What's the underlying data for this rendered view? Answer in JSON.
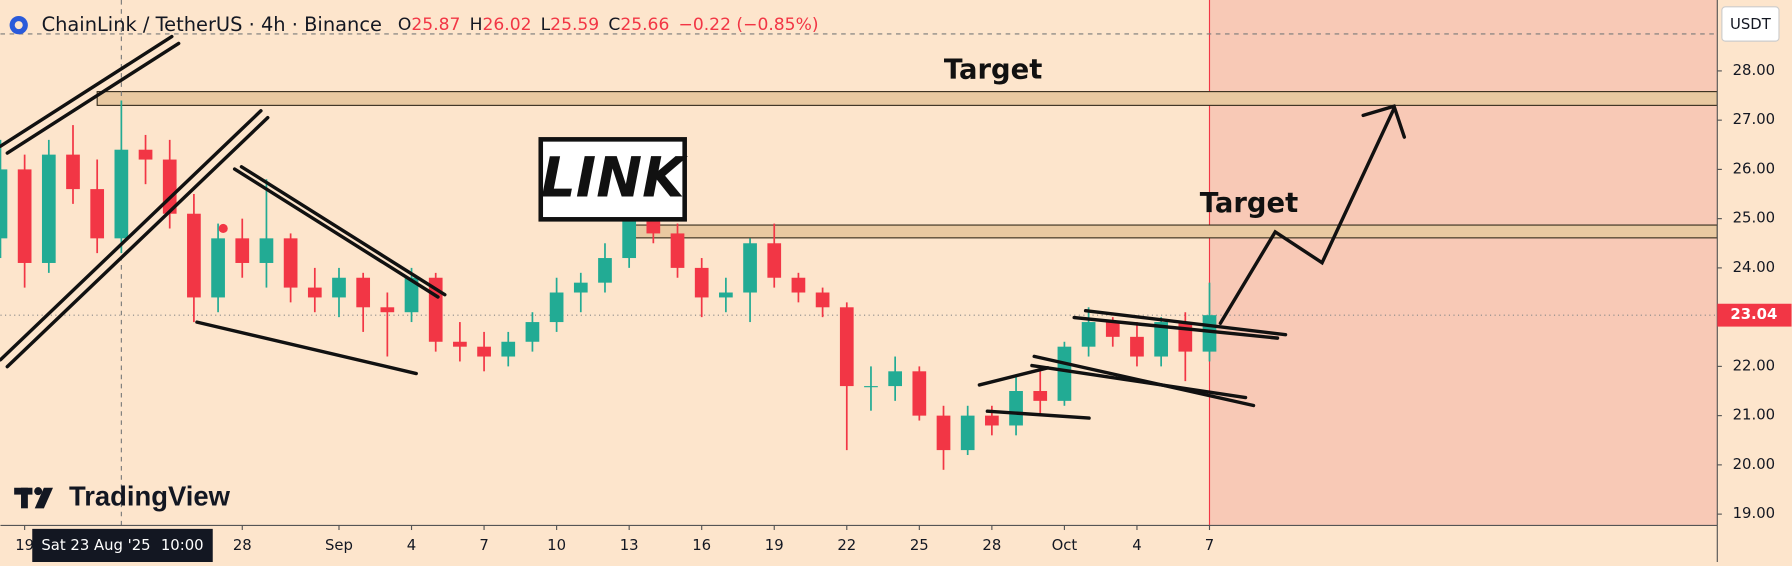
{
  "header": {
    "symbol": "ChainLink / TetherUS · 4h · Binance",
    "ohlc": [
      {
        "key": "O",
        "value": 25.87
      },
      {
        "key": "H",
        "value": 26.02
      },
      {
        "key": "L",
        "value": 25.59
      },
      {
        "key": "C",
        "value": 25.66
      }
    ],
    "change": "−0.22 (−0.85%)"
  },
  "logo": "TradingView",
  "currency": "USDT",
  "chart_data": {
    "type": "candlestick",
    "x": [
      "2025-08-18",
      "2025-08-19",
      "2025-08-20",
      "2025-08-21",
      "2025-08-22",
      "2025-08-23",
      "2025-08-24",
      "2025-08-25",
      "2025-08-26",
      "2025-08-27",
      "2025-08-28",
      "2025-08-29",
      "2025-08-30",
      "2025-08-31",
      "2025-09-01",
      "2025-09-02",
      "2025-09-03",
      "2025-09-04",
      "2025-09-05",
      "2025-09-06",
      "2025-09-07",
      "2025-09-08",
      "2025-09-09",
      "2025-09-10",
      "2025-09-11",
      "2025-09-12",
      "2025-09-13",
      "2025-09-14",
      "2025-09-15",
      "2025-09-16",
      "2025-09-17",
      "2025-09-18",
      "2025-09-19",
      "2025-09-20",
      "2025-09-21",
      "2025-09-22",
      "2025-09-23",
      "2025-09-24",
      "2025-09-25",
      "2025-09-26",
      "2025-09-27",
      "2025-09-28",
      "2025-09-29",
      "2025-09-30",
      "2025-10-01",
      "2025-10-02",
      "2025-10-03",
      "2025-10-04",
      "2025-10-05",
      "2025-10-06",
      "2025-10-07"
    ],
    "open": [
      24.6,
      26.0,
      24.1,
      26.3,
      25.6,
      24.6,
      26.4,
      26.2,
      25.1,
      23.4,
      24.6,
      24.1,
      24.6,
      23.6,
      23.4,
      23.8,
      23.2,
      23.1,
      23.8,
      22.5,
      22.4,
      22.2,
      22.5,
      22.9,
      23.5,
      23.7,
      24.2,
      25.0,
      24.7,
      24.0,
      23.4,
      23.5,
      24.5,
      23.8,
      23.5,
      23.2,
      21.6,
      21.6,
      21.9,
      21.0,
      20.3,
      21.0,
      20.8,
      21.5,
      21.3,
      22.4,
      22.9,
      22.6,
      22.2,
      22.9,
      22.3
    ],
    "high": [
      26.6,
      26.3,
      26.6,
      26.9,
      26.2,
      27.4,
      26.7,
      26.6,
      25.5,
      24.9,
      25.0,
      25.8,
      24.7,
      24.0,
      24.0,
      23.9,
      23.5,
      24.0,
      23.9,
      22.9,
      22.7,
      22.7,
      23.1,
      23.8,
      23.9,
      24.5,
      25.3,
      25.2,
      24.9,
      24.2,
      23.8,
      24.6,
      24.9,
      23.9,
      23.6,
      23.3,
      22.0,
      22.2,
      22.0,
      21.2,
      21.2,
      21.2,
      21.8,
      21.9,
      22.5,
      23.2,
      23.0,
      22.9,
      23.0,
      23.1,
      23.7
    ],
    "low": [
      24.2,
      23.6,
      23.9,
      25.3,
      24.3,
      24.3,
      25.7,
      24.8,
      22.9,
      23.1,
      23.8,
      23.6,
      23.3,
      23.1,
      23.0,
      22.7,
      22.2,
      22.9,
      22.3,
      22.1,
      21.9,
      22.0,
      22.3,
      22.7,
      23.1,
      23.5,
      24.0,
      24.5,
      23.8,
      23.0,
      23.1,
      22.9,
      23.6,
      23.3,
      23.0,
      20.3,
      21.1,
      21.3,
      20.9,
      19.9,
      20.2,
      20.6,
      20.6,
      21.0,
      21.2,
      22.2,
      22.4,
      22.0,
      22.0,
      21.7,
      22.1
    ],
    "close": [
      26.0,
      24.1,
      26.3,
      25.6,
      24.6,
      26.4,
      26.2,
      25.1,
      23.4,
      24.6,
      24.1,
      24.6,
      23.6,
      23.4,
      23.8,
      23.2,
      23.1,
      23.8,
      22.5,
      22.4,
      22.2,
      22.5,
      22.9,
      23.5,
      23.7,
      24.2,
      25.0,
      24.7,
      24.0,
      23.4,
      23.5,
      24.5,
      23.8,
      23.5,
      23.2,
      21.6,
      21.6,
      21.9,
      21.0,
      20.3,
      21.0,
      20.8,
      21.5,
      21.3,
      22.4,
      22.9,
      22.6,
      22.2,
      22.9,
      22.3,
      23.04
    ],
    "up_color": "#22ab94",
    "down_color": "#f23645",
    "xlim": [
      "2025-08-18",
      "2025-10-28"
    ],
    "xticks": [
      {
        "value": "2025-08-19",
        "label": "19"
      },
      {
        "value": "2025-08-28",
        "label": "28"
      },
      {
        "value": "2025-09-01",
        "label": "Sep"
      },
      {
        "value": "2025-09-04",
        "label": "4"
      },
      {
        "value": "2025-09-07",
        "label": "7"
      },
      {
        "value": "2025-09-10",
        "label": "10"
      },
      {
        "value": "2025-09-13",
        "label": "13"
      },
      {
        "value": "2025-09-16",
        "label": "16"
      },
      {
        "value": "2025-09-19",
        "label": "19"
      },
      {
        "value": "2025-09-22",
        "label": "22"
      },
      {
        "value": "2025-09-25",
        "label": "25"
      },
      {
        "value": "2025-09-28",
        "label": "28"
      },
      {
        "value": "2025-10-01",
        "label": "Oct"
      },
      {
        "value": "2025-10-04",
        "label": "4"
      },
      {
        "value": "2025-10-07",
        "label": "7"
      }
    ],
    "ylim": [
      18.77,
      29.44
    ],
    "yticks": [
      {
        "value": 19,
        "label": "19.00"
      },
      {
        "value": 20,
        "label": "20.00"
      },
      {
        "value": 21,
        "label": "21.00"
      },
      {
        "value": 22,
        "label": "22.00"
      },
      {
        "value": 23,
        "label": "23.00"
      },
      {
        "value": 24,
        "label": "24.00"
      },
      {
        "value": 25,
        "label": "25.00"
      },
      {
        "value": 26,
        "label": "26.00"
      },
      {
        "value": 27,
        "label": "27.00"
      },
      {
        "value": 28,
        "label": "28.00"
      }
    ],
    "last_price": 23.04,
    "crosshair": {
      "x": "2025-08-23",
      "x_label": "Sat 23 Aug '25",
      "time_label": "10:00",
      "y": 28.75
    },
    "shaded_region": {
      "from": "2025-10-07",
      "color": "#f8c9b6"
    },
    "zones": [
      {
        "from": "2025-08-22",
        "low": 27.3,
        "high": 27.58,
        "label": "Target"
      },
      {
        "from": "2025-09-13",
        "low": 24.61,
        "high": 24.87,
        "label": "Target"
      }
    ],
    "annotation": "LINK"
  }
}
